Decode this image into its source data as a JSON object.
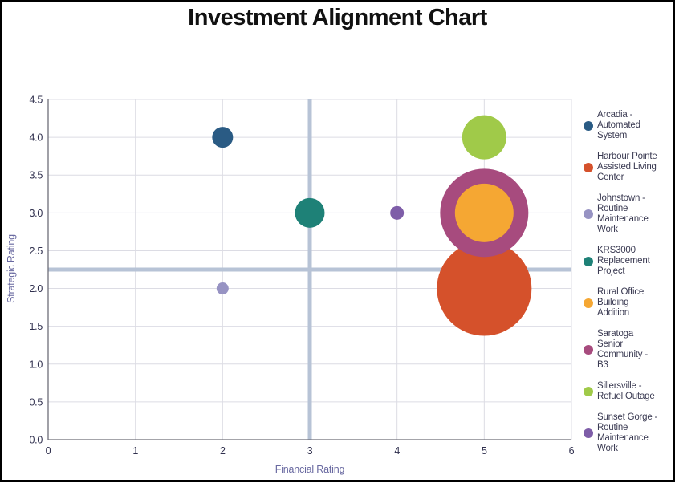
{
  "title": "Investment Alignment Chart",
  "chart_data": {
    "type": "scatter",
    "title": "Investment Alignment Chart",
    "xlabel": "Financial Rating",
    "ylabel": "Strategic Rating",
    "xlim": [
      0,
      6
    ],
    "ylim": [
      0,
      4.5
    ],
    "xtick_labels": [
      "0",
      "1",
      "2",
      "3",
      "4",
      "5",
      "6"
    ],
    "ytick_labels": [
      "0.0",
      "0.5",
      "1.0",
      "1.5",
      "2.0",
      "2.5",
      "3.0",
      "3.5",
      "4.0",
      "4.5"
    ],
    "grid": true,
    "legend_position": "right",
    "quadrant_lines": {
      "x": 3,
      "y": 2.25
    },
    "series": [
      {
        "name": "Arcadia - Automated System",
        "x": 2,
        "y": 4,
        "radius_px": 13,
        "color": "#2A5B84"
      },
      {
        "name": "Harbour Pointe Assisted Living Center",
        "x": 5,
        "y": 2,
        "radius_px": 59,
        "color": "#D5512B"
      },
      {
        "name": "Johnstown - Routine Maintenance Work",
        "x": 2,
        "y": 2,
        "radius_px": 7.5,
        "color": "#9793C3"
      },
      {
        "name": "KRS3000 Replacement Project",
        "x": 3,
        "y": 3,
        "radius_px": 18.5,
        "color": "#1E8177"
      },
      {
        "name": "Rural Office Building Addition",
        "x": 5,
        "y": 3,
        "radius_px": 36.5,
        "color": "#F5A733"
      },
      {
        "name": "Saratoga Senior Community - B3",
        "x": 5,
        "y": 3,
        "radius_px": 55,
        "color": "#A74B7E"
      },
      {
        "name": "Sillersville - Refuel Outage",
        "x": 5,
        "y": 4,
        "radius_px": 27.5,
        "color": "#A0CA49"
      },
      {
        "name": "Sunset Gorge - Routine Maintenance Work",
        "x": 4,
        "y": 3,
        "radius_px": 8.5,
        "color": "#7E5DA8"
      }
    ]
  },
  "legend": {
    "items": [
      {
        "label": "Arcadia -\nAutomated\nSystem",
        "color": "#2A5B84"
      },
      {
        "label": "Harbour Pointe\nAssisted Living\nCenter",
        "color": "#D5512B"
      },
      {
        "label": "Johnstown -\nRoutine\nMaintenance\nWork",
        "color": "#9793C3"
      },
      {
        "label": "KRS3000\nReplacement\nProject",
        "color": "#1E8177"
      },
      {
        "label": "Rural Office\nBuilding\nAddition",
        "color": "#F5A733"
      },
      {
        "label": "Saratoga\nSenior\nCommunity -\nB3",
        "color": "#A74B7E"
      },
      {
        "label": "Sillersville -\nRefuel Outage",
        "color": "#A0CA49"
      },
      {
        "label": "Sunset Gorge -\nRoutine\nMaintenance\nWork",
        "color": "#7E5DA8"
      }
    ]
  },
  "colors": {
    "crosshair": "#B7C3D6",
    "gridline": "#DCDCE4",
    "axis_line": "#6E6E78",
    "tick_text": "#30304E",
    "axis_title_text": "#6868A0",
    "legend_text": "#3A3A52",
    "title_text": "#111111",
    "border": "#000000",
    "background": "#FFFFFF"
  }
}
